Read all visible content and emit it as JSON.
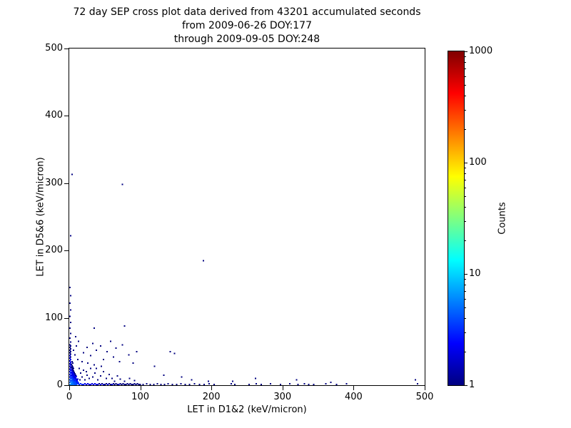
{
  "chart_data": {
    "type": "scatter",
    "title_lines": [
      "72 day SEP cross plot data derived from 43201 accumulated seconds",
      "from 2009-06-26 DOY:177",
      "through 2009-09-05 DOY:248"
    ],
    "period": {
      "from": "2009-06-26",
      "from_doy": 177,
      "through": "2009-09-05",
      "through_doy": 248,
      "accumulated_seconds": 43201,
      "duration_days": 72
    },
    "xlabel": "LET in D1&2 (keV/micron)",
    "ylabel": "LET in D5&6 (keV/micron)",
    "xlim": [
      0,
      500
    ],
    "ylim": [
      0,
      500
    ],
    "x_ticks": [
      "0",
      "100",
      "200",
      "300",
      "400",
      "500"
    ],
    "y_ticks": [
      "0",
      "100",
      "200",
      "300",
      "400",
      "500"
    ],
    "grid": false,
    "colorbar": {
      "label": "Counts",
      "scale": "log",
      "range": [
        1,
        1000
      ],
      "ticks": [
        "1000",
        "100",
        "10",
        "1"
      ],
      "tick_values": [
        1000,
        100,
        10,
        1
      ],
      "colormap": "jet"
    },
    "points_format": "[x, y, count]",
    "points": [
      [
        0,
        1,
        6
      ],
      [
        2,
        1,
        6
      ],
      [
        4,
        1,
        5
      ],
      [
        6,
        1,
        5
      ],
      [
        8,
        1,
        4
      ],
      [
        10,
        1,
        4
      ],
      [
        12,
        2,
        4
      ],
      [
        14,
        1,
        3
      ],
      [
        16,
        2,
        3
      ],
      [
        18,
        1,
        3
      ],
      [
        20,
        1,
        3
      ],
      [
        22,
        2,
        2
      ],
      [
        24,
        1,
        2
      ],
      [
        26,
        2,
        2
      ],
      [
        28,
        1,
        2
      ],
      [
        30,
        1,
        2
      ],
      [
        32,
        2,
        2
      ],
      [
        34,
        1,
        2
      ],
      [
        36,
        2,
        2
      ],
      [
        38,
        1,
        2
      ],
      [
        40,
        1,
        2
      ],
      [
        42,
        2,
        1
      ],
      [
        44,
        1,
        2
      ],
      [
        46,
        2,
        1
      ],
      [
        48,
        1,
        2
      ],
      [
        50,
        1,
        1
      ],
      [
        52,
        2,
        1
      ],
      [
        54,
        1,
        2
      ],
      [
        56,
        2,
        1
      ],
      [
        58,
        1,
        1
      ],
      [
        60,
        1,
        2
      ],
      [
        62,
        2,
        1
      ],
      [
        64,
        1,
        1
      ],
      [
        66,
        2,
        1
      ],
      [
        68,
        1,
        1
      ],
      [
        70,
        1,
        2
      ],
      [
        72,
        2,
        1
      ],
      [
        74,
        1,
        1
      ],
      [
        76,
        2,
        1
      ],
      [
        78,
        1,
        1
      ],
      [
        80,
        1,
        1
      ],
      [
        82,
        2,
        1
      ],
      [
        84,
        1,
        1
      ],
      [
        86,
        2,
        1
      ],
      [
        88,
        1,
        1
      ],
      [
        90,
        1,
        1
      ],
      [
        92,
        2,
        1
      ],
      [
        94,
        1,
        1
      ],
      [
        96,
        2,
        1
      ],
      [
        98,
        1,
        1
      ],
      [
        100,
        1,
        1
      ],
      [
        104,
        1,
        1
      ],
      [
        109,
        2,
        1
      ],
      [
        114,
        1,
        1
      ],
      [
        119,
        1,
        1
      ],
      [
        124,
        2,
        1
      ],
      [
        129,
        1,
        1
      ],
      [
        134,
        1,
        1
      ],
      [
        139,
        2,
        1
      ],
      [
        145,
        1,
        1
      ],
      [
        151,
        1,
        1
      ],
      [
        157,
        2,
        1
      ],
      [
        163,
        1,
        1
      ],
      [
        169,
        1,
        1
      ],
      [
        176,
        2,
        1
      ],
      [
        183,
        1,
        1
      ],
      [
        190,
        1,
        1
      ],
      [
        197,
        2,
        1
      ],
      [
        204,
        1,
        1
      ],
      [
        228,
        2,
        1
      ],
      [
        233,
        1,
        1
      ],
      [
        230,
        6,
        1
      ],
      [
        253,
        1,
        1
      ],
      [
        262,
        10,
        1
      ],
      [
        263,
        2,
        1
      ],
      [
        270,
        1,
        1
      ],
      [
        283,
        2,
        1
      ],
      [
        297,
        1,
        1
      ],
      [
        310,
        2,
        1
      ],
      [
        320,
        8,
        1
      ],
      [
        322,
        1,
        1
      ],
      [
        331,
        2,
        1
      ],
      [
        337,
        1,
        1
      ],
      [
        344,
        1,
        1
      ],
      [
        361,
        2,
        1
      ],
      [
        368,
        4,
        1
      ],
      [
        376,
        1,
        1
      ],
      [
        390,
        2,
        1
      ],
      [
        487,
        8,
        1
      ],
      [
        490,
        2,
        1
      ],
      [
        1,
        4,
        5
      ],
      [
        2,
        6,
        4
      ],
      [
        1,
        8,
        4
      ],
      [
        2,
        10,
        4
      ],
      [
        1,
        12,
        3
      ],
      [
        2,
        14,
        3
      ],
      [
        1,
        16,
        3
      ],
      [
        2,
        18,
        3
      ],
      [
        1,
        20,
        3
      ],
      [
        2,
        22,
        2
      ],
      [
        1,
        24,
        2
      ],
      [
        2,
        26,
        2
      ],
      [
        1,
        28,
        2
      ],
      [
        2,
        30,
        2
      ],
      [
        1,
        32,
        2
      ],
      [
        2,
        34,
        2
      ],
      [
        1,
        36,
        2
      ],
      [
        2,
        38,
        2
      ],
      [
        1,
        40,
        2
      ],
      [
        2,
        42,
        1
      ],
      [
        1,
        44,
        2
      ],
      [
        2,
        46,
        1
      ],
      [
        1,
        48,
        1
      ],
      [
        2,
        50,
        1
      ],
      [
        1,
        52,
        1
      ],
      [
        2,
        54,
        1
      ],
      [
        1,
        56,
        1
      ],
      [
        2,
        58,
        1
      ],
      [
        1,
        60,
        1
      ],
      [
        2,
        64,
        1
      ],
      [
        1,
        70,
        1
      ],
      [
        2,
        77,
        1
      ],
      [
        1,
        85,
        1
      ],
      [
        2,
        93,
        1
      ],
      [
        1,
        102,
        1
      ],
      [
        2,
        112,
        1
      ],
      [
        1,
        122,
        1
      ],
      [
        2,
        133,
        1
      ],
      [
        1,
        145,
        1
      ],
      [
        2,
        222,
        1
      ],
      [
        4,
        313,
        1
      ],
      [
        3,
        3,
        6
      ],
      [
        5,
        3,
        5
      ],
      [
        7,
        3,
        4
      ],
      [
        9,
        3,
        4
      ],
      [
        11,
        3,
        3
      ],
      [
        13,
        3,
        3
      ],
      [
        4,
        5,
        5
      ],
      [
        6,
        5,
        4
      ],
      [
        8,
        5,
        4
      ],
      [
        10,
        5,
        3
      ],
      [
        12,
        5,
        3
      ],
      [
        3,
        7,
        4
      ],
      [
        5,
        7,
        4
      ],
      [
        7,
        7,
        3
      ],
      [
        9,
        7,
        3
      ],
      [
        11,
        7,
        2
      ],
      [
        4,
        9,
        4
      ],
      [
        6,
        9,
        3
      ],
      [
        8,
        9,
        3
      ],
      [
        10,
        9,
        2
      ],
      [
        12,
        9,
        2
      ],
      [
        3,
        11,
        3
      ],
      [
        5,
        11,
        3
      ],
      [
        7,
        11,
        2
      ],
      [
        9,
        11,
        2
      ],
      [
        4,
        13,
        3
      ],
      [
        6,
        13,
        2
      ],
      [
        8,
        13,
        2
      ],
      [
        10,
        13,
        2
      ],
      [
        3,
        15,
        2
      ],
      [
        5,
        15,
        2
      ],
      [
        7,
        15,
        2
      ],
      [
        9,
        15,
        1
      ],
      [
        4,
        17,
        2
      ],
      [
        6,
        17,
        2
      ],
      [
        8,
        17,
        1
      ],
      [
        3,
        19,
        2
      ],
      [
        5,
        19,
        2
      ],
      [
        7,
        19,
        1
      ],
      [
        4,
        21,
        2
      ],
      [
        6,
        21,
        1
      ],
      [
        3,
        23,
        2
      ],
      [
        5,
        23,
        1
      ],
      [
        4,
        25,
        1
      ],
      [
        6,
        25,
        1
      ],
      [
        3,
        27,
        1
      ],
      [
        5,
        27,
        1
      ],
      [
        4,
        29,
        1
      ],
      [
        3,
        31,
        1
      ],
      [
        5,
        33,
        1
      ],
      [
        4,
        35,
        1
      ],
      [
        15,
        8,
        1
      ],
      [
        18,
        12,
        1
      ],
      [
        16,
        18,
        1
      ],
      [
        20,
        22,
        1
      ],
      [
        14,
        25,
        1
      ],
      [
        22,
        8,
        1
      ],
      [
        25,
        15,
        1
      ],
      [
        28,
        10,
        1
      ],
      [
        24,
        20,
        1
      ],
      [
        30,
        25,
        1
      ],
      [
        33,
        12,
        1
      ],
      [
        36,
        18,
        1
      ],
      [
        40,
        8,
        1
      ],
      [
        38,
        25,
        1
      ],
      [
        44,
        14,
        1
      ],
      [
        48,
        20,
        1
      ],
      [
        52,
        10,
        1
      ],
      [
        56,
        16,
        1
      ],
      [
        45,
        28,
        1
      ],
      [
        35,
        30,
        1
      ],
      [
        26,
        33,
        1
      ],
      [
        18,
        35,
        1
      ],
      [
        12,
        38,
        1
      ],
      [
        60,
        10,
        1
      ],
      [
        64,
        6,
        1
      ],
      [
        68,
        14,
        1
      ],
      [
        72,
        9,
        1
      ],
      [
        78,
        6,
        1
      ],
      [
        85,
        10,
        1
      ],
      [
        92,
        7,
        1
      ],
      [
        20,
        48,
        1
      ],
      [
        25,
        56,
        1
      ],
      [
        30,
        44,
        1
      ],
      [
        33,
        62,
        1
      ],
      [
        35,
        85,
        1
      ],
      [
        38,
        52,
        1
      ],
      [
        44,
        58,
        1
      ],
      [
        48,
        38,
        1
      ],
      [
        53,
        50,
        1
      ],
      [
        58,
        65,
        1
      ],
      [
        62,
        42,
        1
      ],
      [
        66,
        55,
        1
      ],
      [
        71,
        35,
        1
      ],
      [
        75,
        60,
        1
      ],
      [
        78,
        88,
        1
      ],
      [
        84,
        45,
        1
      ],
      [
        90,
        33,
        1
      ],
      [
        95,
        50,
        1
      ],
      [
        8,
        45,
        1
      ],
      [
        6,
        52,
        1
      ],
      [
        10,
        58,
        1
      ],
      [
        13,
        65,
        1
      ],
      [
        9,
        72,
        1
      ],
      [
        75,
        298,
        1
      ],
      [
        189,
        185,
        1
      ],
      [
        142,
        50,
        1
      ],
      [
        148,
        47,
        1
      ],
      [
        120,
        28,
        1
      ],
      [
        133,
        15,
        1
      ],
      [
        158,
        12,
        1
      ],
      [
        172,
        8,
        1
      ],
      [
        196,
        6,
        1
      ]
    ]
  }
}
